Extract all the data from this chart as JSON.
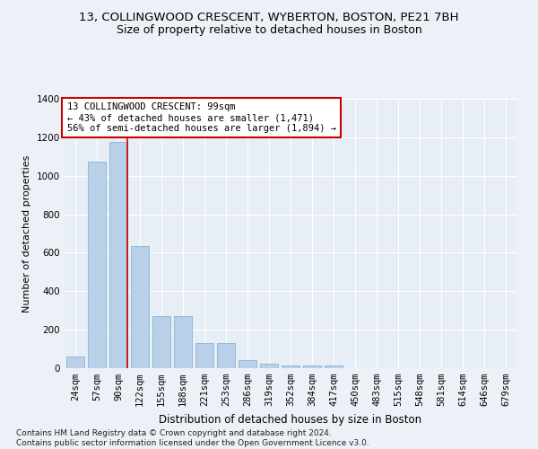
{
  "title1": "13, COLLINGWOOD CRESCENT, WYBERTON, BOSTON, PE21 7BH",
  "title2": "Size of property relative to detached houses in Boston",
  "xlabel": "Distribution of detached houses by size in Boston",
  "ylabel": "Number of detached properties",
  "categories": [
    "24sqm",
    "57sqm",
    "90sqm",
    "122sqm",
    "155sqm",
    "188sqm",
    "221sqm",
    "253sqm",
    "286sqm",
    "319sqm",
    "352sqm",
    "384sqm",
    "417sqm",
    "450sqm",
    "483sqm",
    "515sqm",
    "548sqm",
    "581sqm",
    "614sqm",
    "646sqm",
    "679sqm"
  ],
  "values": [
    60,
    1075,
    1175,
    635,
    270,
    270,
    130,
    130,
    40,
    25,
    15,
    15,
    15,
    0,
    0,
    0,
    0,
    0,
    0,
    0,
    0
  ],
  "bar_color": "#b8d0e8",
  "bar_edge_color": "#8ab4d4",
  "redline_index": 2,
  "annotation_text": "13 COLLINGWOOD CRESCENT: 99sqm\n← 43% of detached houses are smaller (1,471)\n56% of semi-detached houses are larger (1,894) →",
  "annotation_box_color": "#ffffff",
  "annotation_edge_color": "#cc0000",
  "redline_color": "#cc0000",
  "ylim": [
    0,
    1400
  ],
  "yticks": [
    0,
    200,
    400,
    600,
    800,
    1000,
    1200,
    1400
  ],
  "bg_color": "#edf1f7",
  "plot_bg_color": "#e8eef6",
  "grid_color": "#ffffff",
  "footer": "Contains HM Land Registry data © Crown copyright and database right 2024.\nContains public sector information licensed under the Open Government Licence v3.0.",
  "title1_fontsize": 9.5,
  "title2_fontsize": 9,
  "xlabel_fontsize": 8.5,
  "ylabel_fontsize": 8,
  "tick_fontsize": 7.5,
  "annotation_fontsize": 7.5,
  "footer_fontsize": 6.5
}
